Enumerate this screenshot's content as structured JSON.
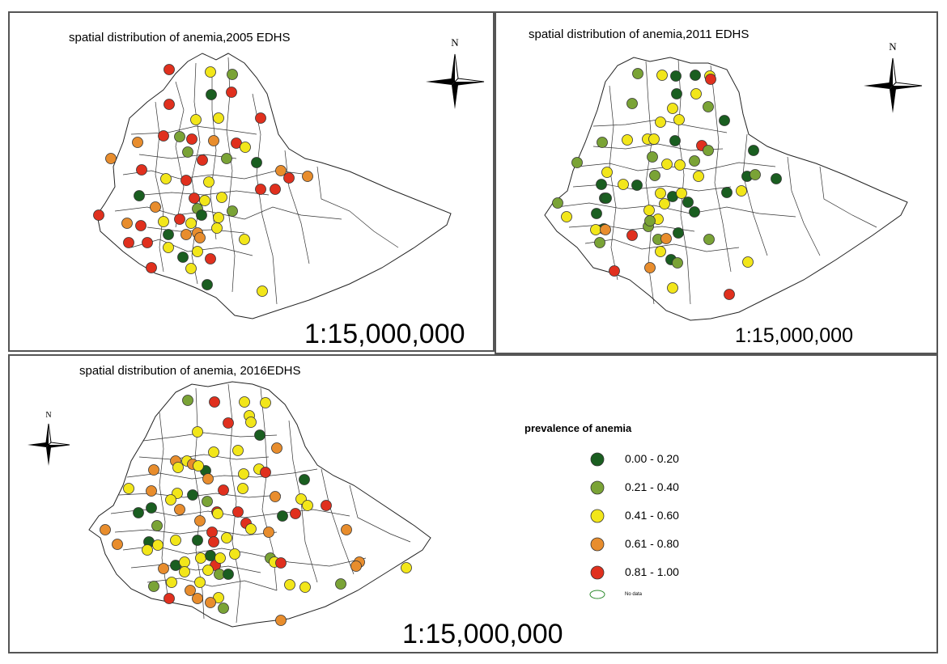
{
  "panels": {
    "p2005": {
      "title": "spatial distribution of anemia,2005 EDHS",
      "scale": "1:15,000,000"
    },
    "p2011": {
      "title": "spatial distribution of anemia,2011 EDHS",
      "scale": "1:15,000,000"
    },
    "p2016": {
      "title": "spatial distribution of anemia, 2016EDHS",
      "scale": "1:15,000,000"
    }
  },
  "north_label": "N",
  "legend": {
    "title": "prevalence of anemia",
    "classes": [
      {
        "label": "0.00 - 0.20",
        "color": "#1a5e20"
      },
      {
        "label": "0.21 - 0.40",
        "color": "#7aa336"
      },
      {
        "label": "0.41 - 0.60",
        "color": "#f2e61a"
      },
      {
        "label": "0.61 - 0.80",
        "color": "#e88d2d"
      },
      {
        "label": "0.81 - 1.00",
        "color": "#e0301e"
      }
    ],
    "nodata_label": "No data",
    "nodata_color": "#2e8b2e"
  }
}
